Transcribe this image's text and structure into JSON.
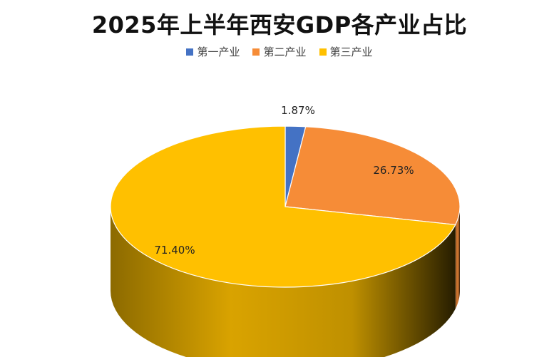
{
  "chart_data": {
    "type": "pie",
    "title": "2025年上半年西安GDP各产业占比",
    "legend_position": "top",
    "categories": [
      "第一产业",
      "第二产业",
      "第三产业"
    ],
    "values": [
      1.87,
      26.73,
      71.4
    ],
    "value_labels": [
      "1.87%",
      "26.73%",
      "71.40%"
    ],
    "colors": [
      "#4472C4",
      "#F68C37",
      "#FFC000"
    ],
    "style": "3d"
  }
}
